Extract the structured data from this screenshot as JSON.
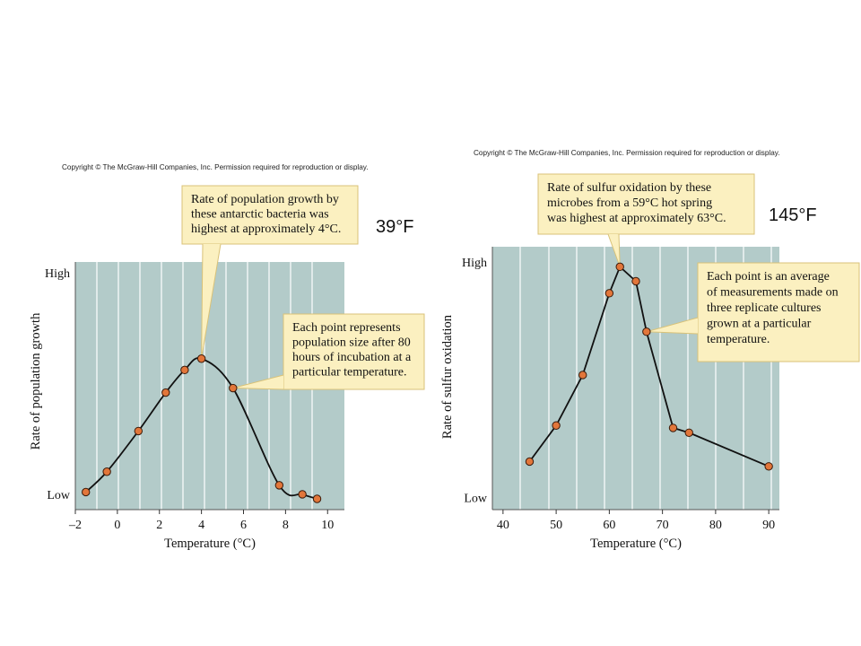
{
  "left_panel": {
    "copyright": "Copyright © The McGraw-Hill Companies, Inc. Permission required for reproduction or display.",
    "temp_note": "39°F"
  },
  "right_panel": {
    "copyright": "Copyright © The McGraw-Hill Companies, Inc. Permission required for reproduction or display.",
    "temp_note": "145°F"
  },
  "colors": {
    "plot_bg": "#b3cbc9",
    "grid": "#ffffff",
    "point_fill": "#e2763a",
    "point_stroke": "#3a1a0a",
    "line": "#111111",
    "callout_bg": "#fbf0c0",
    "callout_border": "#d9c278"
  },
  "chart_data": [
    {
      "type": "line",
      "title": "",
      "xlabel": "Temperature (°C)",
      "ylabel": "Rate of population growth",
      "xlim": [
        -2,
        10.8
      ],
      "xticks": [
        "–2",
        "0",
        "2",
        "4",
        "6",
        "8",
        "10"
      ],
      "xtick_values": [
        -2,
        0,
        2,
        4,
        6,
        8,
        10
      ],
      "ylim": [
        0,
        1
      ],
      "ytick_labels": [
        "Low",
        "High"
      ],
      "ytick_values": [
        0.02,
        1
      ],
      "grid": "vertical",
      "smooth": true,
      "series": [
        {
          "x": [
            -1.5,
            -0.5,
            1.0,
            2.3,
            3.2,
            4.0,
            5.5,
            7.7,
            8.8,
            9.5
          ],
          "y": [
            0.03,
            0.12,
            0.3,
            0.47,
            0.57,
            0.62,
            0.49,
            0.06,
            0.02,
            0.0
          ]
        }
      ],
      "annotations": [
        {
          "text": [
            "Rate of population growth by",
            "these antarctic bacteria was",
            "highest at approximately 4°C."
          ],
          "points_to": 5,
          "placement": "top"
        },
        {
          "text": [
            "Each point represents",
            "population size after 80",
            "hours of incubation at a",
            "particular temperature."
          ],
          "points_to": 6,
          "placement": "right"
        }
      ]
    },
    {
      "type": "line",
      "title": "",
      "xlabel": "Temperature (°C)",
      "ylabel": "Rate of sulfur oxidation",
      "xlim": [
        38,
        92
      ],
      "xticks": [
        "40",
        "50",
        "60",
        "70",
        "80",
        "90"
      ],
      "xtick_values": [
        40,
        50,
        60,
        70,
        80,
        90
      ],
      "ylim": [
        0,
        1
      ],
      "ytick_labels": [
        "Low",
        "High"
      ],
      "ytick_values": [
        0.02,
        1
      ],
      "grid": "vertical",
      "smooth": false,
      "series": [
        {
          "x": [
            45,
            50,
            55,
            60,
            62,
            65,
            67,
            72,
            75,
            90
          ],
          "y": [
            0.17,
            0.32,
            0.53,
            0.87,
            0.98,
            0.92,
            0.71,
            0.31,
            0.29,
            0.15
          ]
        }
      ],
      "annotations": [
        {
          "text": [
            "Rate of sulfur oxidation by these",
            "microbes from a 59°C hot spring",
            "was highest at approximately 63°C."
          ],
          "points_to": 4,
          "placement": "top"
        },
        {
          "text": [
            "Each point is an average",
            "of measurements made on",
            "three replicate cultures",
            "grown at a particular",
            "temperature."
          ],
          "points_to": 6,
          "placement": "right"
        }
      ]
    }
  ]
}
